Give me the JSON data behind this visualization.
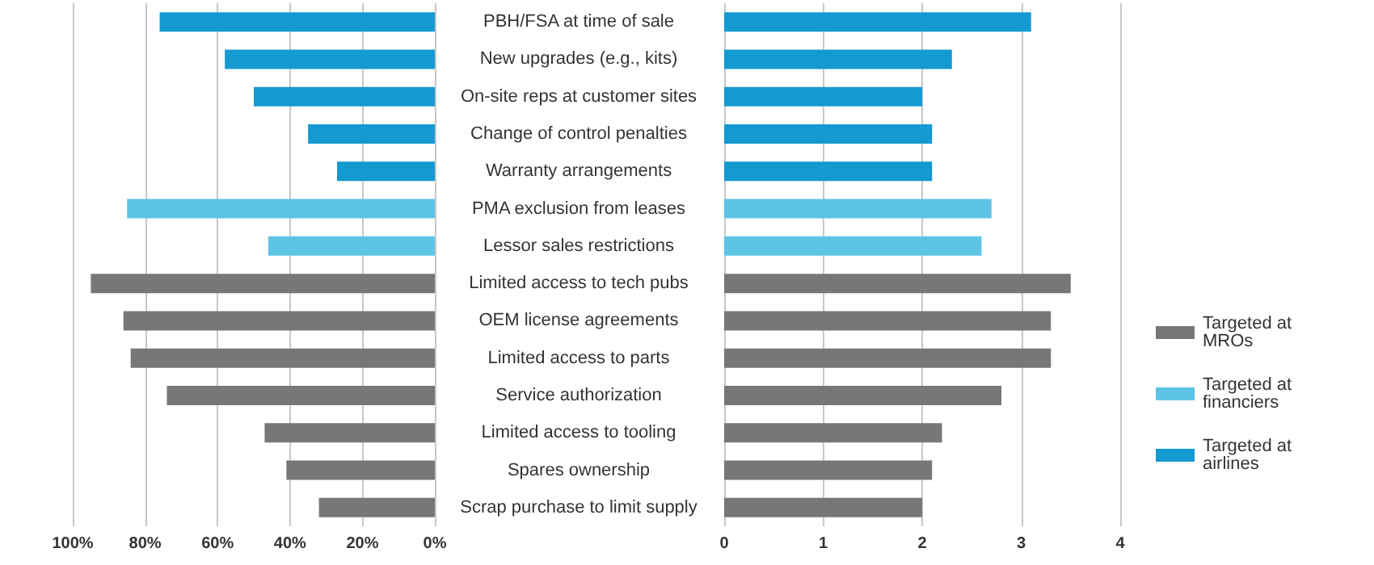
{
  "chart_data": [
    {
      "type": "bar",
      "orientation": "horizontal",
      "categories": [
        "PBH/FSA at time of sale",
        "New upgrades (e.g., kits)",
        "On-site reps at customer sites",
        "Change of control penalties",
        "Warranty arrangements",
        "PMA exclusion from leases",
        "Lessor sales restrictions",
        "Limited access to tech pubs",
        "OEM license agreements",
        "Limited access to parts",
        "Service authorization",
        "Limited access to tooling",
        "Spares ownership",
        "Scrap purchase to limit supply"
      ],
      "xlim": [
        100,
        0
      ],
      "xticks": [
        {
          "value": 100,
          "label": "100%"
        },
        {
          "value": 80,
          "label": "80%"
        },
        {
          "value": 60,
          "label": "60%"
        },
        {
          "value": 40,
          "label": "40%"
        },
        {
          "value": 20,
          "label": "20%"
        },
        {
          "value": 0,
          "label": "0%"
        }
      ],
      "grid": "x",
      "series": [
        {
          "color": "#77777a",
          "values": [
            null,
            null,
            null,
            null,
            null,
            null,
            null,
            95,
            86,
            84,
            74,
            47,
            41,
            32
          ]
        },
        {
          "color": "#5ec4e6",
          "values": [
            null,
            null,
            null,
            null,
            null,
            85,
            46,
            null,
            null,
            null,
            null,
            null,
            null,
            null
          ]
        },
        {
          "color": "#1499d0",
          "values": [
            76,
            58,
            50,
            35,
            27,
            null,
            null,
            null,
            null,
            null,
            null,
            null,
            null,
            null
          ]
        }
      ]
    },
    {
      "type": "bar",
      "orientation": "horizontal",
      "categories": [
        null,
        null,
        null,
        null,
        null,
        null,
        null,
        null,
        null,
        null,
        null,
        null,
        null,
        null
      ],
      "tick_labels": "x",
      "xlim": [
        0,
        4
      ],
      "xticks": [
        0,
        1,
        2,
        3,
        4
      ],
      "grid": "x",
      "legend": "right",
      "series": [
        {
          "name": "Targeted at MROs",
          "color": "#77777a",
          "values": [
            null,
            null,
            null,
            null,
            null,
            null,
            null,
            3.5,
            3.3,
            3.3,
            2.8,
            2.2,
            2.1,
            2.0
          ]
        },
        {
          "name": "Targeted at financiers",
          "color": "#5ec4e6",
          "values": [
            null,
            null,
            null,
            null,
            null,
            2.7,
            2.6,
            null,
            null,
            null,
            null,
            null,
            null,
            null
          ]
        },
        {
          "name": "Targeted at airlines",
          "color": "#1499d0",
          "values": [
            3.1,
            2.3,
            2.0,
            2.1,
            2.1,
            null,
            null,
            null,
            null,
            null,
            null,
            null,
            null,
            null
          ]
        }
      ]
    }
  ]
}
